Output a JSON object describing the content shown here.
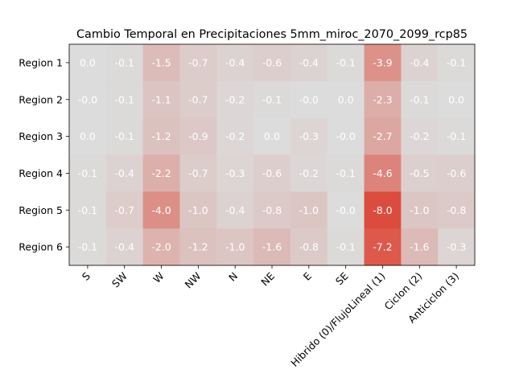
{
  "chart_data": {
    "type": "heatmap",
    "title": "Cambio Temporal en Precipitaciones 5mm_miroc_2070_2099_rcp85",
    "xlabel": "",
    "ylabel": "",
    "x_categories": [
      "S",
      "SW",
      "W",
      "NW",
      "N",
      "NE",
      "E",
      "SE",
      "Hibrido (0)/FlujoLineal (1)",
      "Ciclon (2)",
      "Anticiclon (3)"
    ],
    "y_categories": [
      "Region 1",
      "Region 2",
      "Region 3",
      "Region 4",
      "Region 5",
      "Region 6"
    ],
    "values": [
      [
        0.0,
        -0.1,
        -1.5,
        -0.7,
        -0.4,
        -0.6,
        -0.4,
        -0.1,
        -3.9,
        -0.4,
        -0.1
      ],
      [
        -0.0,
        -0.1,
        -1.1,
        -0.7,
        -0.2,
        -0.1,
        -0.0,
        0.0,
        -2.3,
        -0.1,
        0.0
      ],
      [
        0.0,
        -0.1,
        -1.2,
        -0.9,
        -0.2,
        0.0,
        -0.3,
        -0.0,
        -2.7,
        -0.2,
        -0.1
      ],
      [
        -0.1,
        -0.4,
        -2.2,
        -0.7,
        -0.3,
        -0.6,
        -0.2,
        -0.1,
        -4.6,
        -0.5,
        -0.6
      ],
      [
        -0.1,
        -0.7,
        -4.0,
        -1.0,
        -0.4,
        -0.8,
        -1.0,
        -0.0,
        -8.0,
        -1.0,
        -0.8
      ],
      [
        -0.1,
        -0.4,
        -2.0,
        -1.2,
        -1.0,
        -1.6,
        -0.8,
        -0.1,
        -7.2,
        -1.6,
        -0.3
      ]
    ],
    "labels": [
      [
        "0.0",
        "-0.1",
        "-1.5",
        "-0.7",
        "-0.4",
        "-0.6",
        "-0.4",
        "-0.1",
        "-3.9",
        "-0.4",
        "-0.1"
      ],
      [
        "-0.0",
        "-0.1",
        "-1.1",
        "-0.7",
        "-0.2",
        "-0.1",
        "-0.0",
        "0.0",
        "-2.3",
        "-0.1",
        "0.0"
      ],
      [
        "0.0",
        "-0.1",
        "-1.2",
        "-0.9",
        "-0.2",
        "0.0",
        "-0.3",
        "-0.0",
        "-2.7",
        "-0.2",
        "-0.1"
      ],
      [
        "-0.1",
        "-0.4",
        "-2.2",
        "-0.7",
        "-0.3",
        "-0.6",
        "-0.2",
        "-0.1",
        "-4.6",
        "-0.5",
        "-0.6"
      ],
      [
        "-0.1",
        "-0.7",
        "-4.0",
        "-1.0",
        "-0.4",
        "-0.8",
        "-1.0",
        "-0.0",
        "-8.0",
        "-1.0",
        "-0.8"
      ],
      [
        "-0.1",
        "-0.4",
        "-2.0",
        "-1.2",
        "-1.0",
        "-1.6",
        "-0.8",
        "-0.1",
        "-7.2",
        "-1.6",
        "-0.3"
      ]
    ],
    "colormap": "diverging blue-white-red, centered at 0 (negative values shown as red)",
    "color_range": [
      -8.0,
      8.0
    ],
    "colors": {
      "zero": "#dcdcdc",
      "strongest": "#dc4c3e",
      "cell_text": "#ffffff"
    },
    "grid": false,
    "colorbar": false
  }
}
